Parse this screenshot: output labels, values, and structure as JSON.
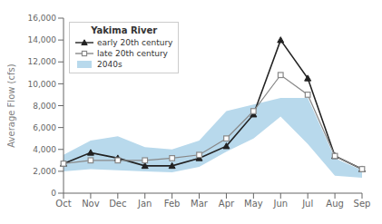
{
  "chart_data": {
    "type": "line",
    "title": "Yakima River",
    "ylabel": "Average Flow (cfs)",
    "categories": [
      "Oct",
      "Nov",
      "Dec",
      "Jan",
      "Feb",
      "Mar",
      "Apr",
      "May",
      "Jun",
      "Jul",
      "Aug",
      "Sep"
    ],
    "series": [
      {
        "name": "early 20th century",
        "type": "line",
        "color": "#222222",
        "marker": "triangle",
        "values": [
          2700,
          3700,
          3200,
          2500,
          2500,
          3200,
          4300,
          7200,
          14000,
          10500,
          3400,
          2200
        ]
      },
      {
        "name": "late 20th century",
        "type": "line",
        "color": "#888888",
        "marker": "square",
        "values": [
          2700,
          3000,
          3000,
          3000,
          3200,
          3500,
          5000,
          7500,
          10800,
          9000,
          3400,
          2200
        ]
      },
      {
        "name": "2040s",
        "type": "band",
        "color": "#b8d9ec",
        "lower": [
          2000,
          2200,
          2100,
          2000,
          1900,
          2400,
          3800,
          5000,
          7000,
          4500,
          1600,
          1400
        ],
        "upper": [
          3500,
          4800,
          5200,
          4200,
          4000,
          4800,
          7500,
          8100,
          8700,
          8700,
          3200,
          2100
        ]
      }
    ],
    "ylim": [
      0,
      16000
    ],
    "yticks": [
      0,
      {
        "value": 2000,
        "label": "2,000"
      },
      {
        "value": 4000,
        "label": "4,000"
      },
      {
        "value": 6000,
        "label": "6,000"
      },
      {
        "value": 8000,
        "label": "8,000"
      },
      {
        "value": 10000,
        "label": "10,000"
      },
      {
        "value": 12000,
        "label": "12,000"
      },
      {
        "value": 14000,
        "label": "14,000"
      },
      {
        "value": 16000,
        "label": "16,000"
      }
    ],
    "grid": false,
    "legend": "upper left"
  }
}
